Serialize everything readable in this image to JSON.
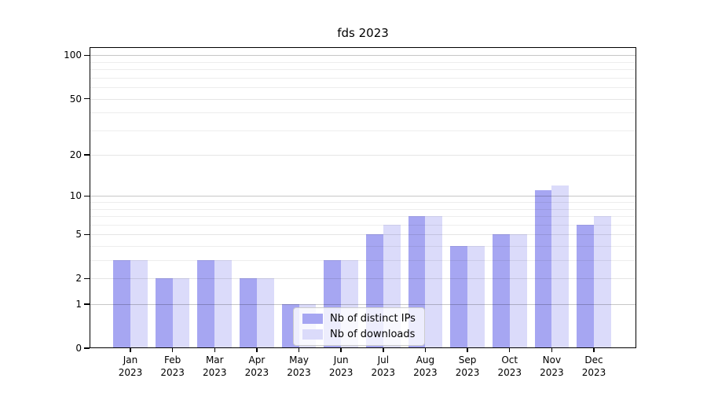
{
  "chart_data": {
    "type": "bar",
    "title": "fds 2023",
    "categories": [
      "Jan",
      "Feb",
      "Mar",
      "Apr",
      "May",
      "Jun",
      "Jul",
      "Aug",
      "Sep",
      "Oct",
      "Nov",
      "Dec"
    ],
    "category_year": "2023",
    "series": [
      {
        "key": "distinct-ips",
        "name": "Nb of distinct IPs",
        "color": "#a6a6f2",
        "values": [
          3,
          2,
          3,
          2,
          1,
          3,
          5,
          7,
          4,
          5,
          11,
          6
        ]
      },
      {
        "key": "downloads",
        "name": "Nb of downloads",
        "color": "#dbdbfa",
        "values": [
          3,
          2,
          3,
          2,
          1,
          3,
          6,
          7,
          4,
          5,
          12,
          7
        ]
      }
    ],
    "yscale": "log1p",
    "ylim": [
      0,
      114
    ],
    "yticks_labeled": [
      0,
      1,
      2,
      5,
      10,
      20,
      50,
      100
    ],
    "yticks_minor": [
      3,
      4,
      6,
      7,
      8,
      9,
      30,
      40,
      60,
      70,
      80,
      90
    ],
    "grid": "horizontal",
    "legend_position": "lower center"
  }
}
